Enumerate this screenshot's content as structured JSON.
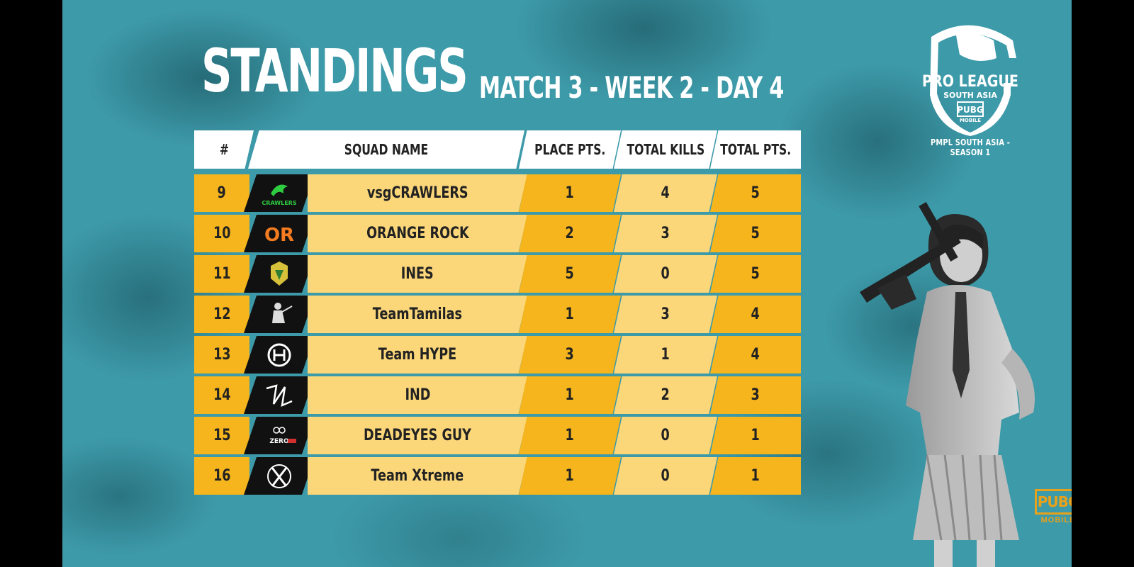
{
  "title": "STANDINGS",
  "subtitle": "MATCH 3 - WEEK 2 - DAY 4",
  "league_logo": {
    "line1": "PRO LEAGUE",
    "line2": "SOUTH ASIA",
    "line3": "PUBG",
    "line4": "MOBILE",
    "season": "PMPL SOUTH ASIA - SEASON 1"
  },
  "watermark": {
    "text": "PUBG",
    "sub": "MOBILE"
  },
  "columns": {
    "rank": "#",
    "squad": "SQUAD NAME",
    "place": "PLACE PTS.",
    "kills": "TOTAL KILLS",
    "total": "TOTAL PTS."
  },
  "rows": [
    {
      "rank": "9",
      "squad": "vsgCRAWLERS",
      "place": "1",
      "kills": "4",
      "total": "5",
      "logo": "crawlers-logo",
      "logo_text": "CRAWLERS"
    },
    {
      "rank": "10",
      "squad": "ORANGE ROCK",
      "place": "2",
      "kills": "3",
      "total": "5",
      "logo": "orange-rock-logo",
      "logo_text": "OR"
    },
    {
      "rank": "11",
      "squad": "INES",
      "place": "5",
      "kills": "0",
      "total": "5",
      "logo": "ines-logo",
      "logo_text": ""
    },
    {
      "rank": "12",
      "squad": "TeamTamilas",
      "place": "1",
      "kills": "3",
      "total": "4",
      "logo": "tamilas-logo",
      "logo_text": ""
    },
    {
      "rank": "13",
      "squad": "Team HYPE",
      "place": "3",
      "kills": "1",
      "total": "4",
      "logo": "hype-logo",
      "logo_text": ""
    },
    {
      "rank": "14",
      "squad": "IND",
      "place": "1",
      "kills": "2",
      "total": "3",
      "logo": "ind-logo",
      "logo_text": ""
    },
    {
      "rank": "15",
      "squad": "DEADEYES GUY",
      "place": "1",
      "kills": "0",
      "total": "1",
      "logo": "deadeyes-logo",
      "logo_text": "ZERO"
    },
    {
      "rank": "16",
      "squad": "Team Xtreme",
      "place": "1",
      "kills": "0",
      "total": "1",
      "logo": "xtreme-logo",
      "logo_text": ""
    }
  ],
  "colors": {
    "accent": "#f6b51d",
    "light": "#fbd77a",
    "background": "#3d9aa9"
  }
}
